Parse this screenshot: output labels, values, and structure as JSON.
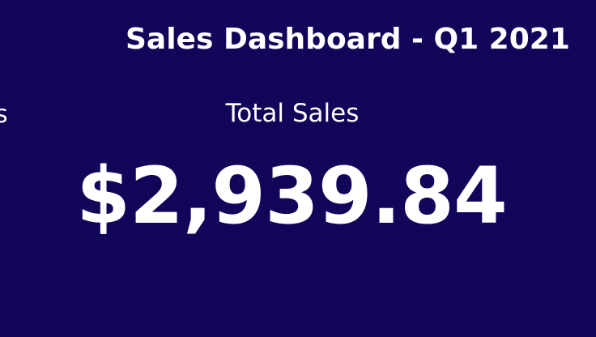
{
  "dashboard": {
    "title": "Sales Dashboard - Q1 2021",
    "clipped_label": "s",
    "kpi": {
      "label": "Total Sales",
      "value": "$2,939.84"
    }
  },
  "colors": {
    "background": "#11055a",
    "text": "#ffffff"
  }
}
